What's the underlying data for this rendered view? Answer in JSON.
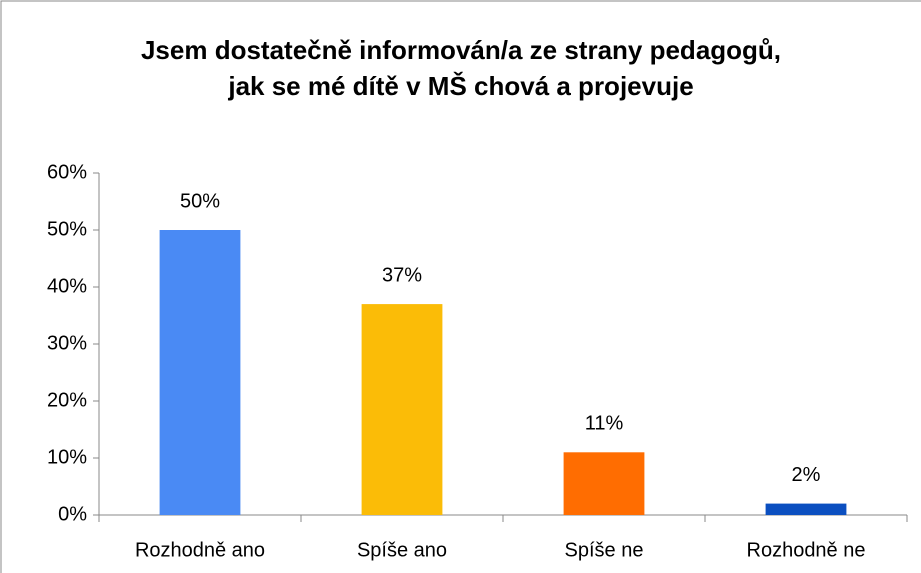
{
  "chart_data": {
    "type": "bar",
    "title": "Jsem dostatečně informován/a ze strany pedagogů, jak se mé dítě v MŠ chová a projevuje",
    "categories": [
      "Rozhodně ano",
      "Spíše ano",
      "Spíše ne",
      "Rozhodně ne"
    ],
    "values": [
      50,
      37,
      11,
      2
    ],
    "value_labels": [
      "50%",
      "37%",
      "11%",
      "2%"
    ],
    "colors": [
      "#4a8af4",
      "#fbbc07",
      "#ff6d01",
      "#0b4fc0"
    ],
    "ylim": [
      0,
      60
    ],
    "yticks": [
      {
        "value": 0,
        "label": "0%"
      },
      {
        "value": 10,
        "label": "10%"
      },
      {
        "value": 20,
        "label": "20%"
      },
      {
        "value": 30,
        "label": "30%"
      },
      {
        "value": 40,
        "label": "40%"
      },
      {
        "value": 50,
        "label": "50%"
      },
      {
        "value": 60,
        "label": "60%"
      }
    ],
    "grid": false
  }
}
